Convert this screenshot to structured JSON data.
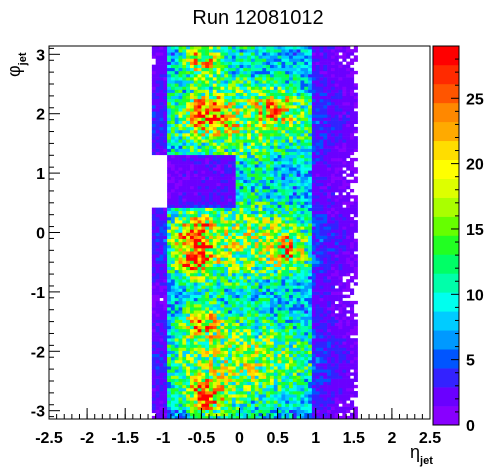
{
  "chart_data": {
    "type": "heatmap",
    "title": "Run 12081012",
    "xlabel": {
      "main": "η",
      "sub": "jet"
    },
    "ylabel": {
      "main": "φ",
      "sub": "jet"
    },
    "xlim": [
      -2.5,
      2.5
    ],
    "ylim": [
      -3.14,
      3.14
    ],
    "x_ticks": [
      "-2.5",
      "-2",
      "-1.5",
      "-1",
      "-0.5",
      "0",
      "0.5",
      "1",
      "1.5",
      "2",
      "2.5"
    ],
    "x_tick_values": [
      -2.5,
      -2,
      -1.5,
      -1,
      -0.5,
      0,
      0.5,
      1,
      1.5,
      2,
      2.5
    ],
    "y_ticks": [
      "-3",
      "-2",
      "-1",
      "0",
      "1",
      "2",
      "3"
    ],
    "y_tick_values": [
      -3,
      -2,
      -1,
      0,
      1,
      2,
      3
    ],
    "colorbar": {
      "zlim": [
        0,
        29
      ],
      "ticks": [
        "0",
        "5",
        "10",
        "15",
        "20",
        "25"
      ],
      "tick_values": [
        0,
        5,
        10,
        15,
        20,
        25
      ]
    },
    "palette": [
      "#8800ff",
      "#6a00ff",
      "#3322ff",
      "#0055ff",
      "#0099ff",
      "#00ccff",
      "#00ffee",
      "#00ffaa",
      "#00ff66",
      "#22ff22",
      "#66ff00",
      "#aaff00",
      "#ddff00",
      "#ffff00",
      "#ffdd00",
      "#ffaa00",
      "#ff8800",
      "#ff5500",
      "#ff2a00",
      "#ff0000"
    ],
    "binning": {
      "x_bins": 100,
      "y_bins": 120
    },
    "occupancy": {
      "eta_core": [
        -0.95,
        0.95
      ],
      "eta_tail": [
        -1.15,
        1.55
      ],
      "phi_gap": [
        0.4,
        1.3
      ],
      "hotspots": [
        {
          "eta": -0.45,
          "phi": -2.75,
          "value": 25
        },
        {
          "eta": -0.5,
          "phi": 2.9,
          "value": 22
        },
        {
          "eta": -0.4,
          "phi": 2.0,
          "value": 22
        },
        {
          "eta": -0.5,
          "phi": -1.5,
          "value": 21
        },
        {
          "eta": -0.6,
          "phi": -0.5,
          "value": 21
        },
        {
          "eta": -0.6,
          "phi": 0.0,
          "value": 20
        },
        {
          "eta": 0.6,
          "phi": -0.3,
          "value": 18
        },
        {
          "eta": 0.5,
          "phi": 2.1,
          "value": 18
        }
      ]
    }
  }
}
